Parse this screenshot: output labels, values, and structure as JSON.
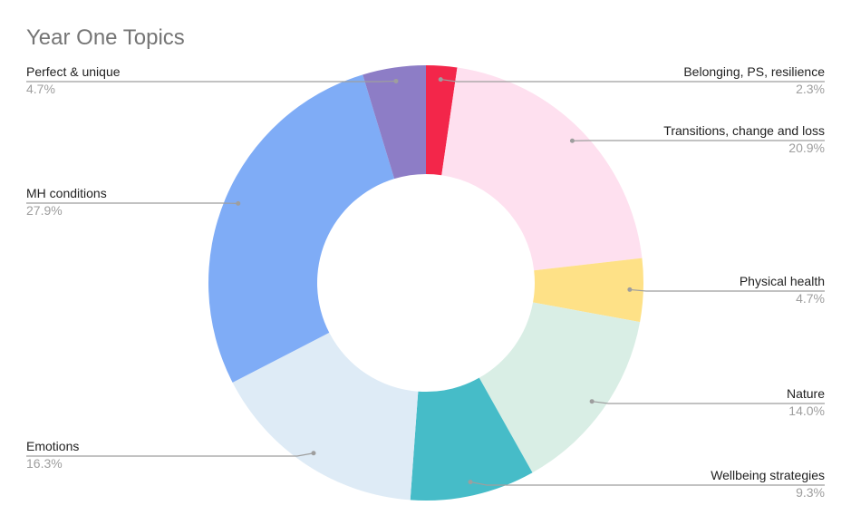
{
  "chart_data": {
    "type": "pie",
    "donut": true,
    "title": "Year One Topics",
    "slices": [
      {
        "label": "Belonging, PS, resilience",
        "value": 2.3,
        "value_label": "2.3%",
        "color": "#f3264a"
      },
      {
        "label": "Transitions, change and loss",
        "value": 20.9,
        "value_label": "20.9%",
        "color": "#fee0ef"
      },
      {
        "label": "Physical health",
        "value": 4.7,
        "value_label": "4.7%",
        "color": "#fee187"
      },
      {
        "label": "Nature",
        "value": 14.0,
        "value_label": "14.0%",
        "color": "#d9eee5"
      },
      {
        "label": "Wellbeing strategies",
        "value": 9.3,
        "value_label": "9.3%",
        "color": "#46bcc8"
      },
      {
        "label": "Emotions",
        "value": 16.3,
        "value_label": "16.3%",
        "color": "#deebf6"
      },
      {
        "label": "MH conditions",
        "value": 27.9,
        "value_label": "27.9%",
        "color": "#7facf6"
      },
      {
        "label": "Perfect & unique",
        "value": 4.7,
        "value_label": "4.7%",
        "color": "#8d7dc6"
      }
    ],
    "legend": "none"
  }
}
